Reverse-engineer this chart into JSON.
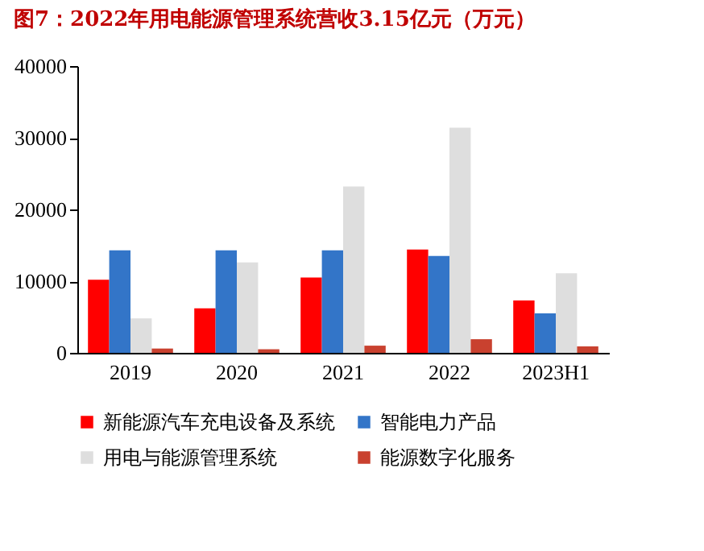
{
  "chart_data": {
    "type": "bar",
    "title": "图7：2022年用电能源管理系统营收3.15亿元（万元）",
    "categories": [
      "2019",
      "2020",
      "2021",
      "2022",
      "2023H1"
    ],
    "series": [
      {
        "name": "新能源汽车充电设备及系统",
        "color": "#ff0000",
        "values": [
          10200,
          6200,
          10500,
          14400,
          7300
        ]
      },
      {
        "name": "智能电力产品",
        "color": "#3375c8",
        "values": [
          14300,
          14300,
          14300,
          13500,
          5500
        ]
      },
      {
        "name": "用电与能源管理系统",
        "color": "#dedede",
        "values": [
          4800,
          12600,
          23200,
          31400,
          11100
        ]
      },
      {
        "name": "能源数字化服务",
        "color": "#c9412f",
        "values": [
          600,
          500,
          1000,
          1900,
          900
        ]
      }
    ],
    "ylim": [
      0,
      40000
    ],
    "yticks": [
      0,
      10000,
      20000,
      30000,
      40000
    ],
    "grid": false,
    "legend": "bottom"
  }
}
